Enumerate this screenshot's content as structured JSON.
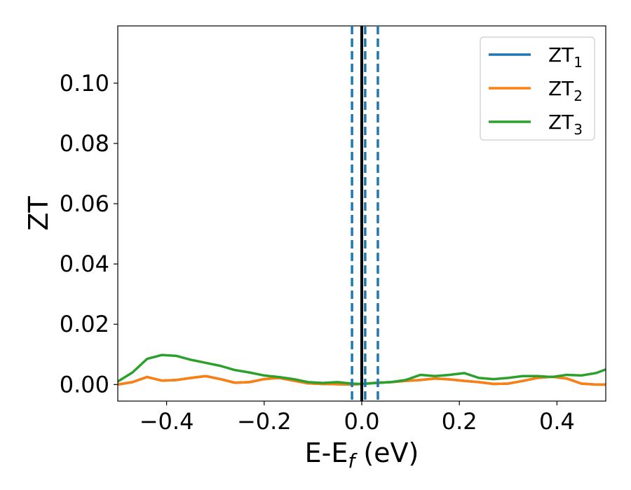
{
  "chart_data": {
    "type": "line",
    "xlabel": "E-E",
    "xlabel_sub": "f",
    "xlabel_unit": " (eV)",
    "ylabel": "ZT",
    "xlim": [
      -0.5,
      0.5
    ],
    "ylim": [
      -0.0055,
      0.119
    ],
    "xticks": [
      -0.4,
      -0.2,
      0.0,
      0.2,
      0.4
    ],
    "xtick_labels": [
      "−0.4",
      "−0.2",
      "0.0",
      "0.2",
      "0.4"
    ],
    "yticks": [
      0.0,
      0.02,
      0.04,
      0.06,
      0.08,
      0.1
    ],
    "ytick_labels": [
      "0.00",
      "0.02",
      "0.04",
      "0.06",
      "0.08",
      "0.10"
    ],
    "grid": false,
    "legend_position": "top-right",
    "vlines": [
      {
        "x": 0.0,
        "style": "solid",
        "color": "#000000"
      },
      {
        "x": -0.02,
        "style": "dashed",
        "color": "#1f77b4"
      },
      {
        "x": 0.007,
        "style": "dashed",
        "color": "#1f77b4"
      },
      {
        "x": 0.033,
        "style": "dashed",
        "color": "#1f77b4"
      }
    ],
    "series": [
      {
        "name": "ZT",
        "sub": "1",
        "color": "#1f77b4",
        "x": [
          -0.5,
          -0.47,
          -0.44,
          -0.41,
          -0.38,
          -0.35,
          -0.32,
          -0.29,
          -0.26,
          -0.23,
          -0.2,
          -0.17,
          -0.14,
          -0.11,
          -0.08,
          -0.05,
          -0.02,
          0.0,
          0.03,
          0.06,
          0.09,
          0.12,
          0.15,
          0.18,
          0.21,
          0.24,
          0.27,
          0.3,
          0.33,
          0.36,
          0.39,
          0.42,
          0.45,
          0.48,
          0.5
        ],
        "y": [
          0.0,
          0.0008,
          0.0025,
          0.0013,
          0.0015,
          0.0022,
          0.0028,
          0.0018,
          0.0006,
          0.0008,
          0.0018,
          0.0022,
          0.0013,
          0.0004,
          0.0002,
          0.0001,
          0.0,
          0.0002,
          0.0006,
          0.0008,
          0.0012,
          0.0015,
          0.002,
          0.0017,
          0.0012,
          0.0008,
          0.0002,
          0.0003,
          0.0012,
          0.0022,
          0.0026,
          0.002,
          0.0003,
          0.0,
          0.0
        ]
      },
      {
        "name": "ZT",
        "sub": "2",
        "color": "#ff7f0e",
        "x": [
          -0.5,
          -0.47,
          -0.44,
          -0.41,
          -0.38,
          -0.35,
          -0.32,
          -0.29,
          -0.26,
          -0.23,
          -0.2,
          -0.17,
          -0.14,
          -0.11,
          -0.08,
          -0.05,
          -0.02,
          0.0,
          0.03,
          0.06,
          0.09,
          0.12,
          0.15,
          0.18,
          0.21,
          0.24,
          0.27,
          0.3,
          0.33,
          0.36,
          0.39,
          0.42,
          0.45,
          0.48,
          0.5
        ],
        "y": [
          0.0,
          0.0008,
          0.0025,
          0.0013,
          0.0015,
          0.0022,
          0.0028,
          0.0018,
          0.0006,
          0.0008,
          0.0018,
          0.0022,
          0.0013,
          0.0004,
          0.0002,
          0.0001,
          0.0,
          0.0002,
          0.0006,
          0.0008,
          0.0012,
          0.0015,
          0.002,
          0.0017,
          0.0012,
          0.0008,
          0.0002,
          0.0003,
          0.0012,
          0.0022,
          0.0026,
          0.002,
          0.0003,
          0.0,
          0.0
        ]
      },
      {
        "name": "ZT",
        "sub": "3",
        "color": "#2ca02c",
        "x": [
          -0.5,
          -0.47,
          -0.44,
          -0.41,
          -0.38,
          -0.35,
          -0.32,
          -0.29,
          -0.26,
          -0.23,
          -0.2,
          -0.17,
          -0.14,
          -0.11,
          -0.08,
          -0.05,
          -0.02,
          0.0,
          0.03,
          0.06,
          0.09,
          0.12,
          0.15,
          0.18,
          0.21,
          0.24,
          0.27,
          0.3,
          0.33,
          0.36,
          0.39,
          0.42,
          0.45,
          0.48,
          0.5
        ],
        "y": [
          0.001,
          0.004,
          0.0085,
          0.0098,
          0.0095,
          0.0082,
          0.0072,
          0.0062,
          0.0048,
          0.004,
          0.003,
          0.0025,
          0.0018,
          0.0008,
          0.0005,
          0.0008,
          0.0003,
          0.0002,
          0.0005,
          0.0008,
          0.0015,
          0.0032,
          0.0028,
          0.0032,
          0.0038,
          0.0022,
          0.0018,
          0.0022,
          0.0028,
          0.0028,
          0.0025,
          0.0032,
          0.003,
          0.0038,
          0.005
        ]
      }
    ]
  }
}
